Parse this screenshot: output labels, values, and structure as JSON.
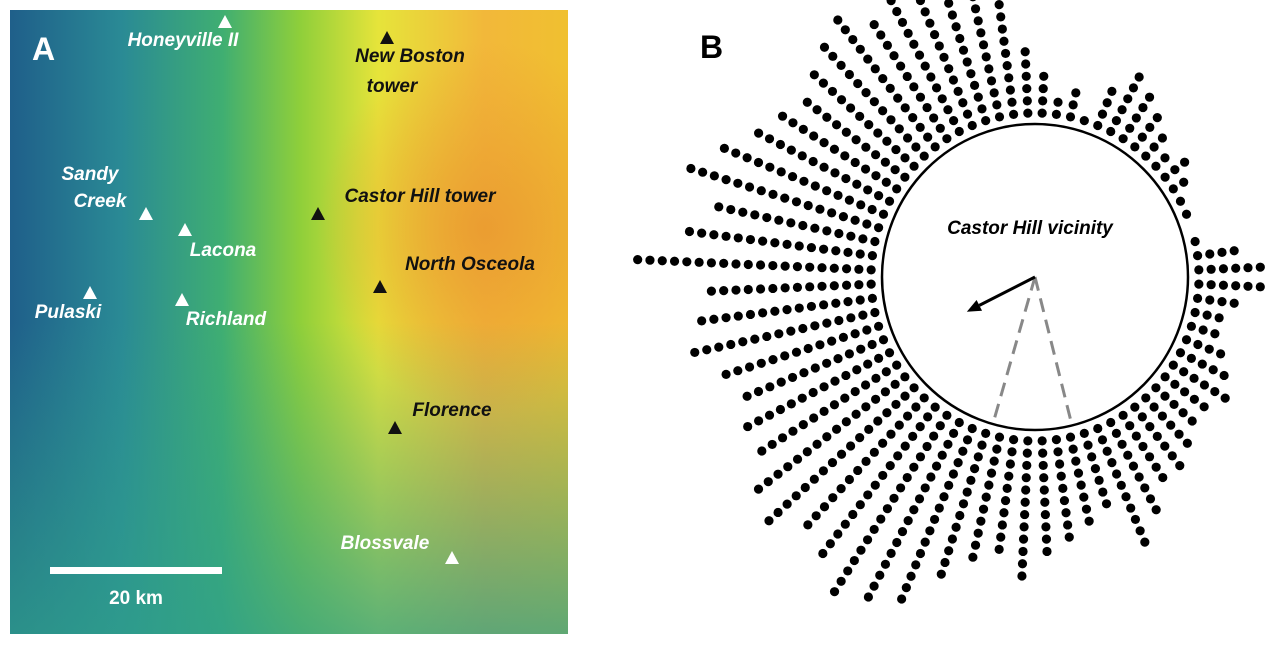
{
  "panel_a": {
    "letter": "A",
    "scale_bar": "20 km",
    "sites": [
      {
        "label": [
          "Honeyville II"
        ],
        "color": "#ffffff"
      },
      {
        "label": [
          "New Boston",
          "tower"
        ],
        "color": "#111111"
      },
      {
        "label": [
          "Sandy",
          "Creek"
        ],
        "color": "#ffffff"
      },
      {
        "label": [
          "Lacona"
        ],
        "color": "#ffffff"
      },
      {
        "label": [
          "Castor Hill tower"
        ],
        "color": "#111111"
      },
      {
        "label": [
          "North Osceola"
        ],
        "color": "#111111"
      },
      {
        "label": [
          "Pulaski"
        ],
        "color": "#ffffff"
      },
      {
        "label": [
          "Richland"
        ],
        "color": "#ffffff"
      },
      {
        "label": [
          "Florence"
        ],
        "color": "#111111"
      },
      {
        "label": [
          "Blossvale"
        ],
        "color": "#ffffff"
      }
    ]
  },
  "chart_data": {
    "type": "circular-dot-histogram",
    "letter": "B",
    "title": "Castor Hill vicinity",
    "bin_width_deg": 5,
    "counts": [
      4,
      2,
      3,
      1,
      4,
      6,
      5,
      4,
      3,
      2,
      3,
      2,
      1,
      1,
      0,
      1,
      4,
      6,
      6,
      4,
      3,
      3,
      4,
      5,
      6,
      5,
      5,
      6,
      7,
      7,
      9,
      11,
      7,
      8,
      9,
      10,
      12,
      10,
      11,
      13,
      16,
      17,
      18,
      16,
      15,
      17,
      16,
      14,
      14,
      13,
      14,
      16,
      15,
      14,
      20,
      16,
      14,
      17,
      15,
      13,
      12,
      11,
      12,
      13,
      14,
      12,
      14,
      16,
      12,
      11,
      10,
      6
    ],
    "mean_direction_deg": 243,
    "mean_vector_length": 0.5,
    "confidence_deg": [
      196,
      166
    ],
    "color": "#000000"
  }
}
